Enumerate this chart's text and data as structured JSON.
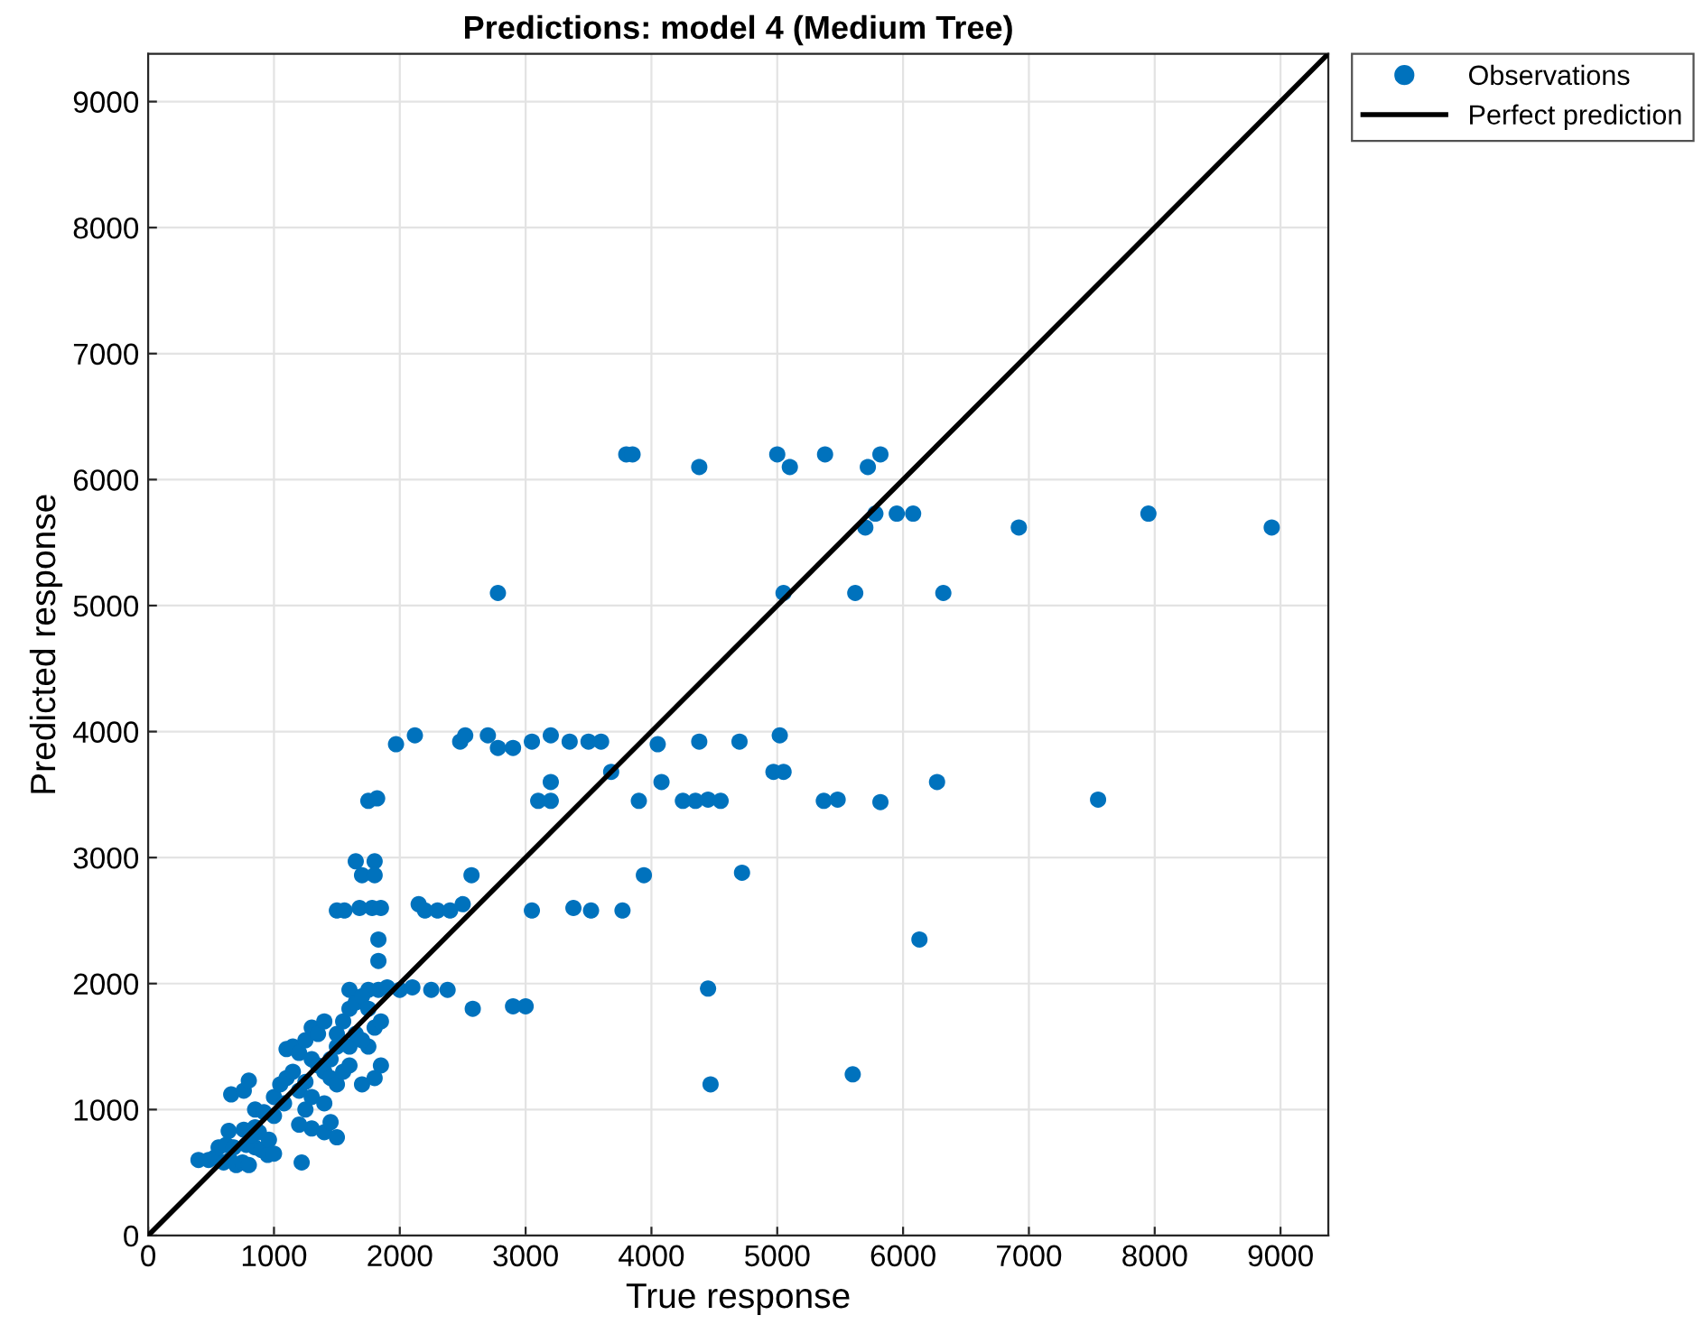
{
  "chart_data": {
    "type": "scatter",
    "title": "Predictions: model 4 (Medium Tree)",
    "xlabel": "True response",
    "ylabel": "Predicted response",
    "xlim": [
      0,
      9380
    ],
    "ylim": [
      0,
      9380
    ],
    "xticks": [
      0,
      1000,
      2000,
      3000,
      4000,
      5000,
      6000,
      7000,
      8000,
      9000
    ],
    "yticks": [
      0,
      1000,
      2000,
      3000,
      4000,
      5000,
      6000,
      7000,
      8000,
      9000
    ],
    "grid": true,
    "legend": "top right",
    "marker": "circle",
    "series": [
      {
        "name": "Observations",
        "color": "#0072bd",
        "x": [
          3800,
          3850,
          4380,
          5000,
          5100,
          5380,
          5720,
          5820,
          5780,
          5950,
          6080,
          7950,
          5700,
          6920,
          8930,
          2780,
          5050,
          5620,
          6320,
          1970,
          2120,
          2480,
          2520,
          2700,
          2780,
          2900,
          3050,
          3200,
          3350,
          3500,
          3600,
          4050,
          4380,
          4700,
          5020,
          3680,
          4970,
          5050,
          3200,
          4080,
          6270,
          1750,
          1820,
          3100,
          3200,
          3900,
          4250,
          4350,
          4450,
          4550,
          5370,
          5480,
          5820,
          7550,
          1650,
          1800,
          1700,
          1800,
          2570,
          3940,
          4720,
          1500,
          1560,
          1680,
          1780,
          1850,
          2150,
          2200,
          2300,
          2400,
          2500,
          3050,
          3380,
          3520,
          3770,
          1830,
          1830,
          6130,
          1830,
          1900,
          2000,
          2100,
          2250,
          2380,
          4450,
          1600,
          1750,
          2580,
          2900,
          3000,
          4470,
          5600,
          400,
          480,
          530,
          600,
          650,
          700,
          750,
          800,
          560,
          620,
          680,
          780,
          850,
          900,
          950,
          640,
          760,
          820,
          880,
          960,
          660,
          760,
          800,
          850,
          920,
          1000,
          1050,
          1080,
          1100,
          1150,
          1200,
          1250,
          1100,
          1150,
          1200,
          1250,
          1300,
          1350,
          1400,
          1300,
          1350,
          1400,
          1450,
          1500,
          1500,
          1450,
          1500,
          1550,
          1600,
          1650,
          1700,
          1550,
          1600,
          1650,
          1750,
          1800,
          1850,
          1750,
          1300,
          1400,
          1500,
          1200,
          1250,
          1000,
          1700,
          1800,
          1850,
          1450,
          1300,
          1600,
          1700,
          1220,
          850,
          1000,
          1400
        ],
        "values": [
          6200,
          6200,
          6100,
          6200,
          6100,
          6200,
          6100,
          6200,
          5730,
          5730,
          5730,
          5730,
          5620,
          5620,
          5620,
          5100,
          5100,
          5100,
          5100,
          3900,
          3970,
          3920,
          3970,
          3970,
          3870,
          3870,
          3920,
          3970,
          3920,
          3920,
          3920,
          3900,
          3920,
          3920,
          3970,
          3680,
          3680,
          3680,
          3600,
          3600,
          3600,
          3450,
          3470,
          3450,
          3450,
          3450,
          3450,
          3450,
          3460,
          3450,
          3450,
          3460,
          3440,
          3460,
          2970,
          2970,
          2860,
          2860,
          2860,
          2860,
          2880,
          2580,
          2580,
          2600,
          2600,
          2600,
          2630,
          2580,
          2580,
          2580,
          2630,
          2580,
          2600,
          2580,
          2580,
          2350,
          2180,
          2350,
          1950,
          1970,
          1950,
          1970,
          1950,
          1950,
          1960,
          1950,
          1950,
          1800,
          1820,
          1820,
          1200,
          1280,
          600,
          600,
          620,
          580,
          600,
          560,
          580,
          560,
          700,
          720,
          700,
          720,
          700,
          680,
          640,
          830,
          840,
          800,
          820,
          760,
          1120,
          1150,
          1230,
          1000,
          980,
          1100,
          1200,
          1050,
          1250,
          1300,
          1150,
          1220,
          1480,
          1500,
          1450,
          1550,
          1650,
          1600,
          1700,
          1400,
          1350,
          1300,
          1400,
          1500,
          1600,
          1250,
          1200,
          1700,
          1800,
          1850,
          1900,
          1300,
          1500,
          1600,
          1500,
          1650,
          1700,
          1800,
          850,
          820,
          780,
          880,
          1000,
          950,
          1200,
          1250,
          1350,
          900,
          1100,
          1350,
          1550,
          580,
          860,
          650,
          1050
        ]
      },
      {
        "name": "Perfect prediction",
        "type": "line",
        "color": "#000000",
        "marker": "none",
        "x": [
          0,
          9380
        ],
        "values": [
          0,
          9380
        ]
      }
    ]
  }
}
